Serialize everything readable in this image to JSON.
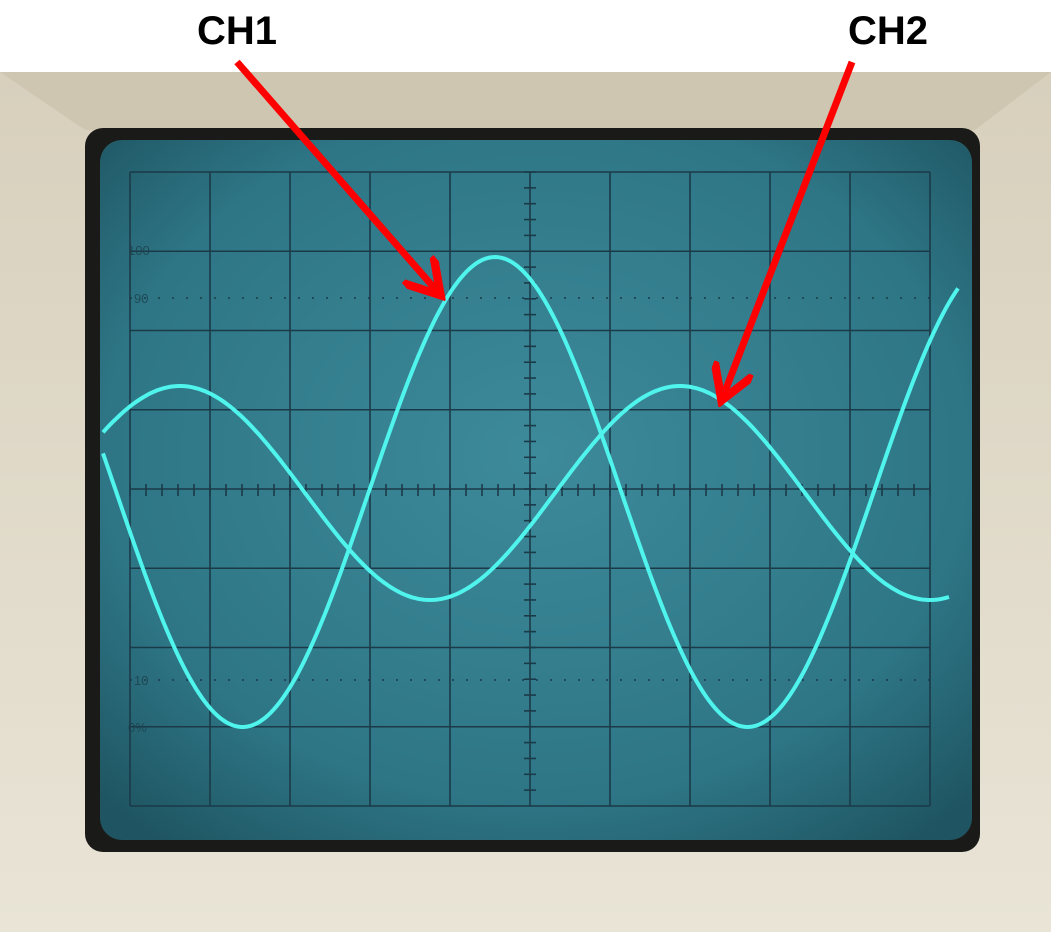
{
  "annotations": {
    "ch1": "CH1",
    "ch2": "CH2"
  },
  "graticule_labels": {
    "top": "100",
    "upper": "90",
    "lower": "10",
    "bottom": "0%"
  }
}
